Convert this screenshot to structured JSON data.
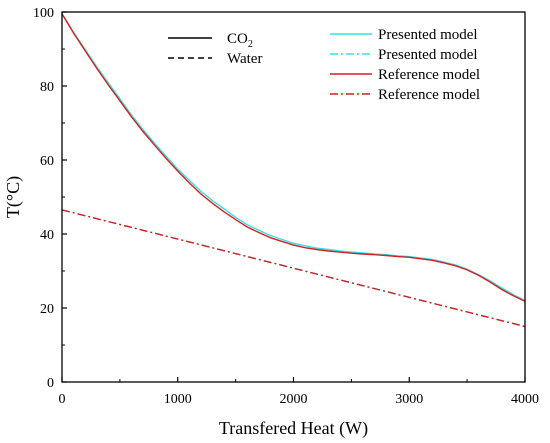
{
  "chart_data": {
    "type": "line",
    "xlabel": "Transfered Heat (W)",
    "ylabel": "T(°C)",
    "xlim": [
      0,
      4000
    ],
    "ylim": [
      0,
      100
    ],
    "xticks": [
      0,
      1000,
      2000,
      3000,
      4000
    ],
    "yticks": [
      0,
      20,
      40,
      60,
      80,
      100
    ],
    "grid": false,
    "legend_style": [
      {
        "base": "CO",
        "sub": "2",
        "line": "solid",
        "color": "#000000"
      },
      {
        "base": "Water",
        "sub": "",
        "line": "dashed",
        "color": "#000000"
      }
    ],
    "legend_placement": "top",
    "series": [
      {
        "name": "Presented model",
        "fluid": "CO2",
        "line": "solid",
        "color": "#33e0ea",
        "x": [
          0,
          100,
          200,
          300,
          400,
          500,
          600,
          700,
          800,
          900,
          1000,
          1100,
          1200,
          1300,
          1400,
          1500,
          1600,
          1700,
          1800,
          1900,
          2000,
          2100,
          2200,
          2300,
          2400,
          2500,
          2600,
          2700,
          2800,
          2900,
          3000,
          3100,
          3200,
          3300,
          3400,
          3500,
          3600,
          3700,
          3800,
          3900,
          4000
        ],
        "y": [
          99.5,
          94.5,
          89.8,
          85.2,
          80.8,
          76.5,
          72.2,
          68.2,
          64.5,
          61.0,
          57.5,
          54.5,
          51.5,
          49.0,
          46.8,
          44.5,
          42.5,
          41.0,
          39.6,
          38.5,
          37.5,
          36.8,
          36.2,
          35.8,
          35.4,
          35.1,
          34.9,
          34.6,
          34.4,
          34.1,
          33.9,
          33.5,
          33.1,
          32.4,
          31.6,
          30.5,
          29.0,
          27.3,
          25.4,
          23.6,
          22.0
        ]
      },
      {
        "name": "Presented model",
        "fluid": "Water",
        "line": "dashdot",
        "color": "#33e0ea",
        "x": [
          0,
          4000
        ],
        "y": [
          46.5,
          15.0
        ]
      },
      {
        "name": "Reference model",
        "fluid": "CO2",
        "line": "solid",
        "color": "#d42020",
        "x": [
          0,
          100,
          200,
          300,
          400,
          500,
          600,
          700,
          800,
          900,
          1000,
          1100,
          1200,
          1300,
          1400,
          1500,
          1600,
          1700,
          1800,
          1900,
          2000,
          2100,
          2200,
          2300,
          2400,
          2500,
          2600,
          2700,
          2800,
          2900,
          3000,
          3100,
          3200,
          3300,
          3400,
          3500,
          3600,
          3700,
          3800,
          3900,
          4000
        ],
        "y": [
          99.5,
          94.3,
          89.5,
          84.8,
          80.3,
          76.0,
          71.7,
          67.7,
          64.0,
          60.4,
          57.0,
          53.8,
          50.8,
          48.3,
          46.0,
          43.9,
          41.9,
          40.4,
          39.0,
          38.0,
          37.0,
          36.3,
          35.8,
          35.4,
          35.1,
          34.8,
          34.6,
          34.4,
          34.2,
          33.9,
          33.7,
          33.3,
          32.9,
          32.2,
          31.4,
          30.3,
          28.8,
          27.0,
          25.0,
          23.3,
          21.8
        ]
      },
      {
        "name": "Reference model",
        "fluid": "Water",
        "line": "dashdot",
        "color": "#d42020",
        "x": [
          0,
          4000
        ],
        "y": [
          46.5,
          15.0
        ]
      }
    ]
  }
}
